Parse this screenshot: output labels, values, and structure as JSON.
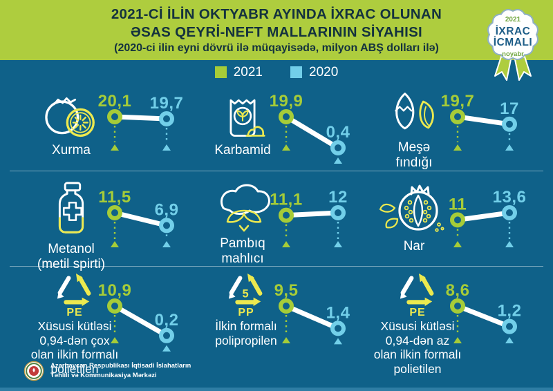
{
  "title": {
    "line1": "2021-Cİ İLİN OKTYABR AYINDA İXRAC OLUNAN",
    "line2": "ƏSAS QEYRİ-NEFT MALLARININ SİYAHISI",
    "line3": "(2020-ci ilin eyni dövrü ilə müqayisədə, milyon ABŞ dolları ilə)"
  },
  "badge": {
    "year": "2021",
    "line1": "İXRAC",
    "line2": "İCMALI",
    "month": "noyabr"
  },
  "legend": {
    "items": [
      {
        "label": "2021",
        "color": "#a6cc38"
      },
      {
        "label": "2020",
        "color": "#72cfe9"
      }
    ]
  },
  "colors": {
    "background": "#0f6189",
    "header": "#aecd3e",
    "green": "#a6cc38",
    "blue": "#72cfe9",
    "yellow": "#ece94f",
    "title_text": "#14323e"
  },
  "grid": {
    "items": [
      {
        "label": "Xurma",
        "icon": "persimmon-icon",
        "value_2021": "20,1",
        "value_2020": "19,7"
      },
      {
        "label": "Karbamid",
        "icon": "urea-bag-icon",
        "value_2021": "19,9",
        "value_2020": "0,4"
      },
      {
        "label": "Meşə\nfındığı",
        "icon": "hazelnut-icon",
        "value_2021": "19,7",
        "value_2020": "17"
      },
      {
        "label": "Metanol\n(metil spirti)",
        "icon": "methanol-bottle-icon",
        "value_2021": "11,5",
        "value_2020": "6,9"
      },
      {
        "label": "Pambıq\nmahlıcı",
        "icon": "cotton-icon",
        "value_2021": "11,1",
        "value_2020": "12"
      },
      {
        "label": "Nar",
        "icon": "pomegranate-icon",
        "value_2021": "11",
        "value_2020": "13,6"
      },
      {
        "label": "Xüsusi kütləsi\n0,94-dən çox\nolan ilkin formalı\npolietilen",
        "icon": "recycle-pe-icon",
        "icon_label": "PE",
        "value_2021": "10,9",
        "value_2020": "0,2"
      },
      {
        "label": "İlkin formalı\npolipropilen",
        "icon": "recycle-pp-icon",
        "icon_label": "PP",
        "icon_number": "5",
        "value_2021": "9,5",
        "value_2020": "1,4"
      },
      {
        "label": "Xüsusi kütləsi\n0,94-dən az\nolan ilkin formalı\npolietilen",
        "icon": "recycle-pe-icon",
        "icon_label": "PE",
        "value_2021": "8,6",
        "value_2020": "1,2"
      }
    ]
  },
  "footer": {
    "organization": "Azərbaycan Respublikası İqtisadi İslahatların\nTəhlili və Kommunikasiya Mərkəzi"
  },
  "chart_data": {
    "type": "line",
    "title": "2021-ci ilin oktyabr ayında ixrac olunan əsas qeyri-neft mallarının siyahısı (2020-ci ilin eyni dövrü ilə müqayisədə, milyon ABŞ dolları ilə)",
    "categories": [
      "Xurma",
      "Karbamid",
      "Meşə fındığı",
      "Metanol (metil spirti)",
      "Pambıq mahlıcı",
      "Nar",
      "Xüsusi kütləsi 0,94-dən çox olan ilkin formalı polietilen",
      "İlkin formalı polipropilen",
      "Xüsusi kütləsi 0,94-dən az olan ilkin formalı polietilen"
    ],
    "series": [
      {
        "name": "2021",
        "values": [
          20.1,
          19.9,
          19.7,
          11.5,
          11.1,
          11,
          10.9,
          9.5,
          8.6
        ]
      },
      {
        "name": "2020",
        "values": [
          19.7,
          0.4,
          17,
          6.9,
          12,
          13.6,
          0.2,
          1.4,
          1.2
        ]
      }
    ],
    "unit": "milyon ABŞ dolları",
    "legend_position": "top"
  }
}
